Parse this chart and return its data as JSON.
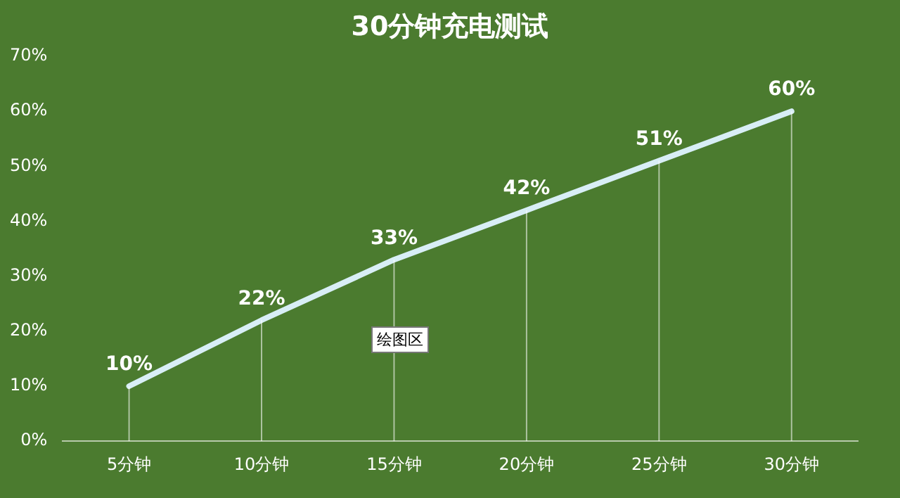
{
  "chart_data": {
    "type": "line",
    "title": "30分钟充电测试",
    "categories": [
      "5分钟",
      "10分钟",
      "15分钟",
      "20分钟",
      "25分钟",
      "30分钟"
    ],
    "series": [
      {
        "color": "#d8eef6",
        "values": [
          10,
          22,
          33,
          42,
          51,
          60
        ],
        "value_labels": [
          "10%",
          "22%",
          "33%",
          "42%",
          "51%",
          "60%"
        ]
      }
    ],
    "ylim": [
      0,
      70
    ],
    "yticks": [
      {
        "value": 0,
        "label": "0%"
      },
      {
        "value": 10,
        "label": "10%"
      },
      {
        "value": 20,
        "label": "20%"
      },
      {
        "value": 30,
        "label": "30%"
      },
      {
        "value": 40,
        "label": "40%"
      },
      {
        "value": 50,
        "label": "50%"
      },
      {
        "value": 60,
        "label": "60%"
      },
      {
        "value": 70,
        "label": "70%"
      }
    ],
    "grid": "x",
    "legend": false,
    "marker": "none",
    "line_style": "solid",
    "annotations": [
      "绘图区"
    ]
  }
}
